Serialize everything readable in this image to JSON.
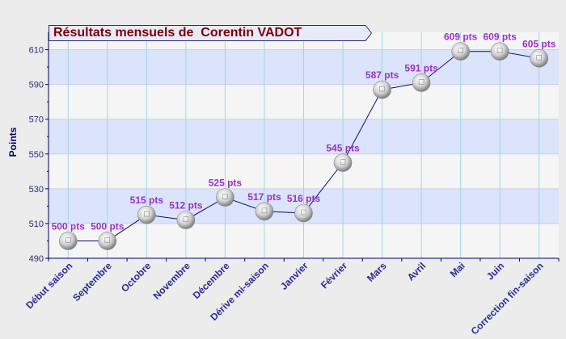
{
  "chart_data": {
    "type": "line",
    "title": "Résultats mensuels de  Corentin VADOT",
    "ylabel": "Points",
    "xlabel": "",
    "ylim": [
      490,
      620
    ],
    "yticks": [
      490,
      510,
      530,
      550,
      570,
      590,
      610
    ],
    "categories": [
      "Début saison",
      "Septembre",
      "Octobre",
      "Novembre",
      "Décembre",
      "Dérive mi-saison",
      "Janvier",
      "Février",
      "Mars",
      "Avril",
      "Mai",
      "Juin",
      "Correction fin-saison"
    ],
    "values": [
      500,
      500,
      515,
      512,
      525,
      517,
      516,
      545,
      587,
      591,
      609,
      609,
      605
    ],
    "point_labels": [
      "500 pts",
      "500 pts",
      "515 pts",
      "512 pts",
      "525 pts",
      "517 pts",
      "516 pts",
      "545 pts",
      "587 pts",
      "591 pts",
      "609 pts",
      "609 pts",
      "605 pts"
    ],
    "grid": true,
    "colors": {
      "line": "#0a0a80",
      "point_label": "#9a2fc8",
      "band_blue": "#dbe4fb",
      "band_gray": "#f5f5f5",
      "axis": "#000066",
      "tick_label": "#2a2a7a",
      "title": "#7a0000"
    }
  }
}
